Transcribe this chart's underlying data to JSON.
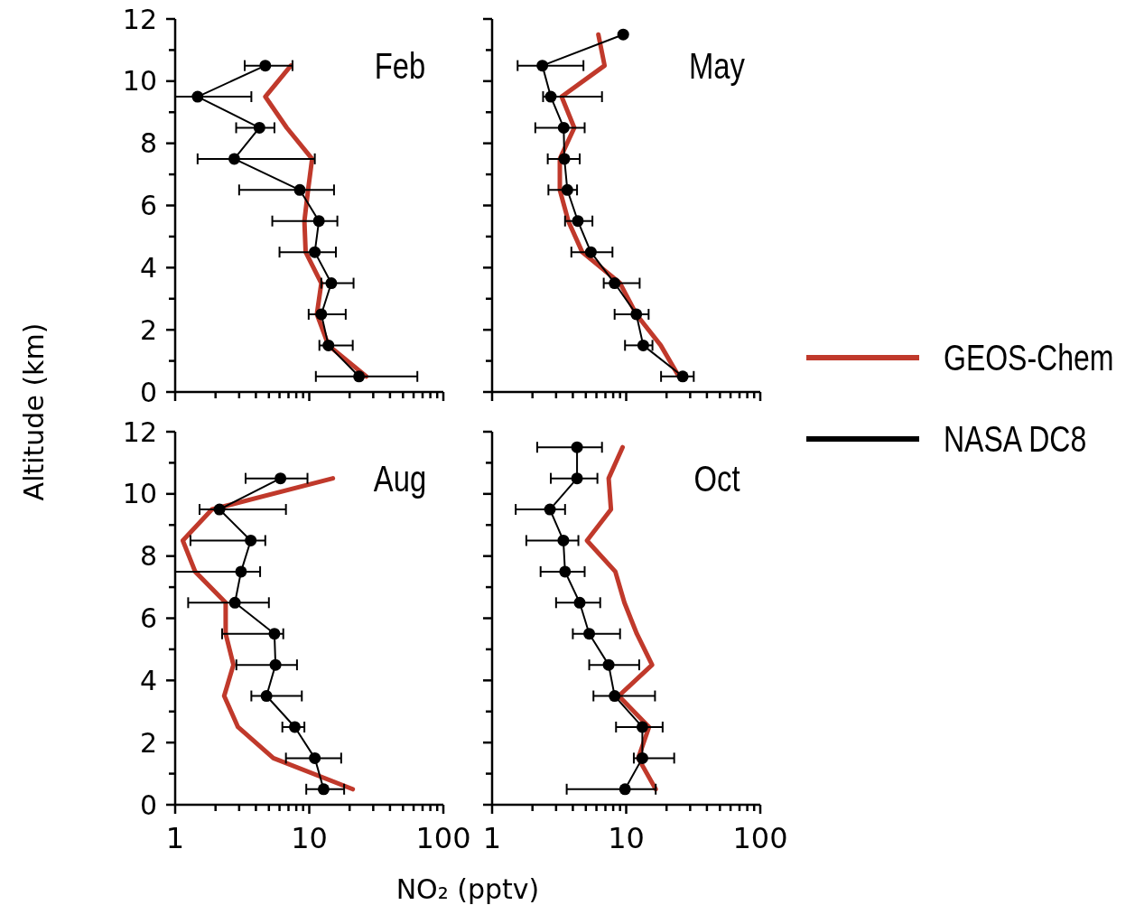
{
  "chart_data": [
    {
      "type": "line",
      "title": "Feb",
      "ylabel": "Altitude (km)",
      "log": "x",
      "xlim": [
        1,
        100
      ],
      "ylim": [
        0,
        12
      ],
      "tick_labels": "y",
      "xticks": [
        1,
        {
          "value": 2,
          "label": null
        },
        {
          "value": 3,
          "label": null
        },
        {
          "value": 4,
          "label": null
        },
        {
          "value": 5,
          "label": null
        },
        {
          "value": 6,
          "label": null
        },
        {
          "value": 7,
          "label": null
        },
        {
          "value": 8,
          "label": null
        },
        {
          "value": 9,
          "label": null
        },
        10,
        {
          "value": 20,
          "label": null
        },
        {
          "value": 30,
          "label": null
        },
        {
          "value": 40,
          "label": null
        },
        {
          "value": 50,
          "label": null
        },
        {
          "value": 60,
          "label": null
        },
        {
          "value": 70,
          "label": null
        },
        {
          "value": 80,
          "label": null
        },
        {
          "value": 90,
          "label": null
        },
        100
      ],
      "yticks": [
        0,
        {
          "value": 1,
          "label": null
        },
        2,
        {
          "value": 3,
          "label": null
        },
        4,
        {
          "value": 5,
          "label": null
        },
        6,
        {
          "value": 7,
          "label": null
        },
        8,
        {
          "value": 9,
          "label": null
        },
        10,
        {
          "value": 11,
          "label": null
        },
        12
      ],
      "series": [
        {
          "color": "#c0392b",
          "marker": "none",
          "x": [
            26.6,
            13.9,
            11.4,
            12.3,
            9.4,
            9.2,
            9.8,
            10.5,
            6.8,
            4.7,
            7.3
          ],
          "values": [
            0.5,
            1.5,
            2.5,
            3.5,
            4.5,
            5.5,
            6.5,
            7.5,
            8.5,
            9.5,
            10.5
          ]
        },
        {
          "color": "#000000",
          "marker": "circle",
          "x": [
            23.5,
            13.9,
            12.3,
            14.6,
            11.0,
            11.8,
            8.5,
            2.76,
            4.25,
            1.47,
            4.7
          ],
          "values": [
            0.5,
            1.5,
            2.5,
            3.5,
            4.5,
            5.5,
            6.5,
            7.5,
            8.5,
            9.5,
            10.5
          ],
          "xerrors": [
            [
              11.2,
              64
            ],
            [
              11.9,
              21.1
            ],
            [
              9.9,
              18.7
            ],
            [
              12.3,
              21.4
            ],
            [
              6.0,
              15.8
            ],
            [
              5.3,
              16.2
            ],
            [
              3.0,
              15.3
            ],
            [
              1.47,
              11.0
            ],
            [
              2.85,
              5.5
            ],
            [
              1,
              3.7
            ],
            [
              3.3,
              7.5
            ]
          ]
        }
      ]
    },
    {
      "type": "line",
      "title": "May",
      "log": "x",
      "xlim": [
        1,
        100
      ],
      "ylim": [
        0,
        12
      ],
      "tick_labels": false,
      "legend": "right",
      "xticks": [
        1,
        {
          "value": 2,
          "label": null
        },
        {
          "value": 3,
          "label": null
        },
        {
          "value": 4,
          "label": null
        },
        {
          "value": 5,
          "label": null
        },
        {
          "value": 6,
          "label": null
        },
        {
          "value": 7,
          "label": null
        },
        {
          "value": 8,
          "label": null
        },
        {
          "value": 9,
          "label": null
        },
        10,
        {
          "value": 20,
          "label": null
        },
        {
          "value": 30,
          "label": null
        },
        {
          "value": 40,
          "label": null
        },
        {
          "value": 50,
          "label": null
        },
        {
          "value": 60,
          "label": null
        },
        {
          "value": 70,
          "label": null
        },
        {
          "value": 80,
          "label": null
        },
        {
          "value": 90,
          "label": null
        },
        100
      ],
      "yticks": [
        0,
        {
          "value": 1,
          "label": null
        },
        2,
        {
          "value": 3,
          "label": null
        },
        4,
        {
          "value": 5,
          "label": null
        },
        6,
        {
          "value": 7,
          "label": null
        },
        8,
        {
          "value": 9,
          "label": null
        },
        10,
        {
          "value": 11,
          "label": null
        },
        12
      ],
      "series": [
        {
          "name": "GEOS-Chem",
          "color": "#c0392b",
          "marker": "none",
          "x": [
            24.7,
            18.1,
            11.9,
            9.0,
            4.7,
            3.7,
            3.2,
            3.2,
            4.1,
            3.3,
            6.9,
            6.2
          ],
          "values": [
            0.5,
            1.5,
            2.5,
            3.5,
            4.5,
            5.5,
            6.5,
            7.5,
            8.5,
            9.5,
            10.5,
            11.5
          ]
        },
        {
          "name": "NASA DC8",
          "color": "#000000",
          "marker": "circle",
          "x": [
            26.4,
            13.4,
            11.9,
            8.2,
            5.45,
            4.36,
            3.64,
            3.46,
            3.42,
            2.74,
            2.37,
            9.5
          ],
          "values": [
            0.5,
            1.5,
            2.5,
            3.5,
            4.5,
            5.5,
            6.5,
            7.5,
            8.5,
            9.5,
            10.5,
            11.5
          ],
          "xerrors": [
            [
              18.2,
              31.9
            ],
            [
              9.8,
              15.7
            ],
            [
              8.2,
              14.7
            ],
            [
              6.8,
              12.6
            ],
            [
              3.9,
              7.9
            ],
            [
              3.5,
              5.6
            ],
            [
              2.63,
              4.3
            ],
            [
              2.6,
              4.5
            ],
            [
              2.1,
              4.9
            ],
            [
              2.4,
              6.6
            ],
            [
              1.55,
              4.8
            ],
            null
          ]
        }
      ]
    },
    {
      "type": "line",
      "title": "Aug",
      "xlabel": "NO₂ (pptv)",
      "log": "x",
      "xlim": [
        1,
        100
      ],
      "ylim": [
        0,
        12
      ],
      "xticks": [
        1,
        {
          "value": 2,
          "label": null
        },
        {
          "value": 3,
          "label": null
        },
        {
          "value": 4,
          "label": null
        },
        {
          "value": 5,
          "label": null
        },
        {
          "value": 6,
          "label": null
        },
        {
          "value": 7,
          "label": null
        },
        {
          "value": 8,
          "label": null
        },
        {
          "value": 9,
          "label": null
        },
        10,
        {
          "value": 20,
          "label": null
        },
        {
          "value": 30,
          "label": null
        },
        {
          "value": 40,
          "label": null
        },
        {
          "value": 50,
          "label": null
        },
        {
          "value": 60,
          "label": null
        },
        {
          "value": 70,
          "label": null
        },
        {
          "value": 80,
          "label": null
        },
        {
          "value": 90,
          "label": null
        },
        100
      ],
      "yticks": [
        0,
        {
          "value": 1,
          "label": null
        },
        2,
        {
          "value": 3,
          "label": null
        },
        4,
        {
          "value": 5,
          "label": null
        },
        6,
        {
          "value": 7,
          "label": null
        },
        8,
        {
          "value": 9,
          "label": null
        },
        10,
        {
          "value": 11,
          "label": null
        },
        12
      ],
      "series": [
        {
          "color": "#c0392b",
          "marker": "none",
          "x": [
            21.1,
            5.4,
            2.94,
            2.32,
            2.72,
            2.38,
            2.38,
            1.41,
            1.14,
            1.88,
            15.0
          ],
          "values": [
            0.5,
            1.5,
            2.5,
            3.5,
            4.5,
            5.5,
            6.5,
            7.5,
            8.5,
            9.5,
            10.5
          ]
        },
        {
          "color": "#000000",
          "marker": "circle",
          "x": [
            12.8,
            11.0,
            7.8,
            4.8,
            5.6,
            5.5,
            2.79,
            3.1,
            3.66,
            2.14,
            6.1
          ],
          "values": [
            0.5,
            1.5,
            2.5,
            3.5,
            4.5,
            5.5,
            6.5,
            7.5,
            8.5,
            9.5,
            10.5
          ],
          "xerrors": [
            [
              9.5,
              18.2
            ],
            [
              6.7,
              17.3
            ],
            [
              6.3,
              9.2
            ],
            [
              3.7,
              8.8
            ],
            [
              2.86,
              8.1
            ],
            [
              2.24,
              6.4
            ],
            [
              1.25,
              5.0
            ],
            [
              1,
              4.3
            ],
            [
              1.3,
              4.7
            ],
            [
              1.52,
              6.7
            ],
            [
              3.35,
              9.7
            ]
          ]
        }
      ]
    },
    {
      "type": "line",
      "title": "Oct",
      "log": "x",
      "xlim": [
        1,
        100
      ],
      "ylim": [
        0,
        12
      ],
      "tick_labels": "x",
      "xticks": [
        1,
        {
          "value": 2,
          "label": null
        },
        {
          "value": 3,
          "label": null
        },
        {
          "value": 4,
          "label": null
        },
        {
          "value": 5,
          "label": null
        },
        {
          "value": 6,
          "label": null
        },
        {
          "value": 7,
          "label": null
        },
        {
          "value": 8,
          "label": null
        },
        {
          "value": 9,
          "label": null
        },
        10,
        {
          "value": 20,
          "label": null
        },
        {
          "value": 30,
          "label": null
        },
        {
          "value": 40,
          "label": null
        },
        {
          "value": 50,
          "label": null
        },
        {
          "value": 60,
          "label": null
        },
        {
          "value": 70,
          "label": null
        },
        {
          "value": 80,
          "label": null
        },
        {
          "value": 90,
          "label": null
        },
        100
      ],
      "yticks": [
        0,
        {
          "value": 1,
          "label": null
        },
        2,
        {
          "value": 3,
          "label": null
        },
        4,
        {
          "value": 5,
          "label": null
        },
        6,
        {
          "value": 7,
          "label": null
        },
        8,
        {
          "value": 9,
          "label": null
        },
        10,
        {
          "value": 11,
          "label": null
        },
        12
      ],
      "series": [
        {
          "color": "#c0392b",
          "marker": "none",
          "x": [
            16.6,
            12.3,
            14.8,
            8.8,
            15.6,
            12.0,
            9.7,
            8.3,
            5.1,
            7.7,
            7.4,
            9.4
          ],
          "values": [
            0.5,
            1.5,
            2.5,
            3.5,
            4.5,
            5.5,
            6.5,
            7.5,
            8.5,
            9.5,
            10.5,
            11.5
          ]
        },
        {
          "color": "#000000",
          "marker": "circle",
          "x": [
            9.8,
            13.2,
            13.2,
            8.2,
            7.4,
            5.3,
            4.5,
            3.5,
            3.4,
            2.7,
            4.3,
            4.3
          ],
          "values": [
            0.5,
            1.5,
            2.5,
            3.5,
            4.5,
            5.5,
            6.5,
            7.5,
            8.5,
            9.5,
            10.5,
            11.5
          ],
          "xerrors": [
            [
              3.6,
              16.6
            ],
            [
              11.4,
              22.8
            ],
            [
              8.4,
              18.7
            ],
            [
              5.7,
              16.4
            ],
            [
              5.3,
              12.5
            ],
            [
              4.0,
              9.0
            ],
            [
              3.0,
              6.4
            ],
            [
              2.3,
              4.9
            ],
            [
              1.8,
              4.4
            ],
            [
              1.5,
              3.5
            ],
            [
              2.74,
              6.1
            ],
            [
              2.17,
              6.6
            ]
          ]
        }
      ]
    }
  ]
}
